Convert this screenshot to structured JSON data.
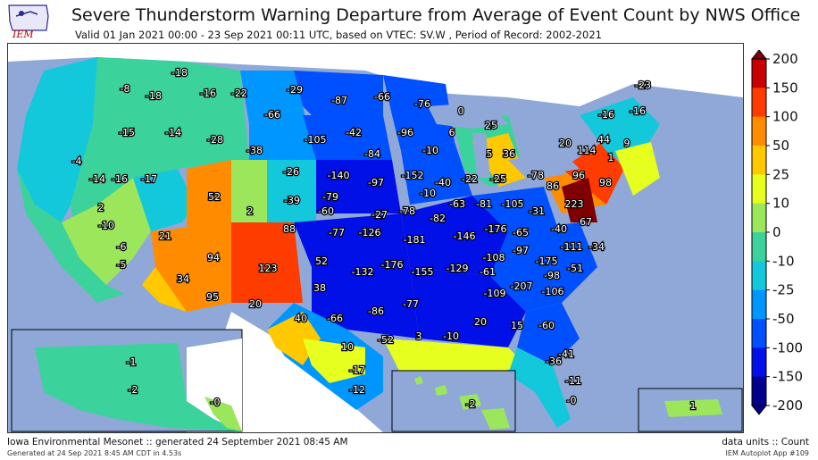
{
  "header": {
    "title": "Severe Thunderstorm Warning Departure from Average of Event Count by NWS Office",
    "subtitle": "Valid 01 Jan 2021 00:00 - 23 Sep 2021 00:11 UTC, based on VTEC: SV.W  , Period of Record: 2002-2021",
    "logo_text": "IEM"
  },
  "footer": {
    "left_line1": "Iowa Environmental Mesonet :: generated 24 September 2021 08:45 AM",
    "left_line2": "Generated at 24 Sep 2021 8:45 AM CDT in 4.53s",
    "right_line1": "data units :: Count",
    "right_line2": "IEM Autoplot App #109"
  },
  "colorbar": {
    "ticks": [
      "200",
      "150",
      "100",
      "50",
      "25",
      "10",
      "0",
      "-10",
      "-25",
      "-50",
      "-100",
      "-150",
      "-200"
    ],
    "colors": [
      "#7f0000",
      "#c80000",
      "#ff3c00",
      "#ff8c00",
      "#ffc800",
      "#e6ff1e",
      "#9be65a",
      "#3cd29b",
      "#14c8dc",
      "#0096ff",
      "#0050ff",
      "#0010e6",
      "#00008c"
    ]
  },
  "chart_data": {
    "type": "choropleth",
    "title": "Severe Thunderstorm Warning Departure from Average of Event Count by NWS Office",
    "units": "Count",
    "scale_bins": [
      -200,
      -150,
      -100,
      -50,
      -25,
      -10,
      0,
      10,
      25,
      50,
      100,
      150,
      200
    ],
    "offices_values": {
      "seattle_area": "-8",
      "nw_wa": "-18",
      "spokane": "-18",
      "missoula": "-16",
      "great_falls": "-22",
      "glasgow": "-29",
      "bismarck": "-87",
      "grand_forks": "-66",
      "duluth": "-76",
      "marquette": "0",
      "caribou": "-23",
      "burlington": "-16",
      "gray_me": "-16",
      "portland_or": "-15",
      "pendleton": "-14",
      "boise": "-28",
      "billings": "-66",
      "rapid_city": "-105",
      "aberdeen": "-42",
      "minneapolis": "-96",
      "green_bay": "6",
      "gaylord": "25",
      "albany": "44",
      "boston": "9",
      "medford": "-4",
      "riverton": "-38",
      "sioux_falls": "-84",
      "la_crosse": "-10",
      "grand_rapids": "5",
      "detroit": "36",
      "buffalo": "20",
      "binghamton": "114",
      "new_york": "1",
      "eureka": "-14",
      "reno": "-16",
      "elko": "-17",
      "salt_lake": "52",
      "cheyenne": "-26",
      "north_platte": "-140",
      "omaha": "-152",
      "des_moines": "-40",
      "chicago": "-22",
      "northern_indiana": "-25",
      "cleveland": "-78",
      "pittsburgh": "86",
      "state_college": "96",
      "philadelphia": "98",
      "grand_junction": "2",
      "denver": "-39",
      "goodland": "-79",
      "hastings": "-97",
      "quad_cities": "-10",
      "sacramento": "2",
      "las_vegas": "21",
      "pueblo": "88",
      "dodge_city": "-60",
      "topeka": "-27",
      "kansas_city": "-78",
      "st_louis": "-82",
      "lincoln_il": "-63",
      "indianapolis": "-81",
      "wilmington_oh": "-105",
      "charleston_wv": "-31",
      "sterling_va": "223",
      "san_francisco": "-10",
      "hanford": "-6",
      "flagstaff": "94",
      "albuquerque": "123",
      "amarillo": "52",
      "wichita": "-77",
      "springfield_mo": "-126",
      "paducah": "-181",
      "louisville": "-146",
      "jackson_ky": "-176",
      "blacksburg": "-65",
      "wakefield": "-40",
      "morehead": "67",
      "los_angeles": "-5",
      "phoenix": "34",
      "tucson": "95",
      "el_paso": "20",
      "lubbock": "38",
      "norman": "-132",
      "tulsa": "-176",
      "little_rock": "-155",
      "memphis": "-129",
      "nashville": "-108",
      "morristown": "-97",
      "greer": "-175",
      "raleigh": "-111",
      "newport": "-34",
      "midland": "40",
      "fort_worth": "-66",
      "shreveport": "-86",
      "jackson_ms": "-77",
      "huntsville": "-61",
      "birmingham": "-109",
      "atlanta": "-207",
      "columbia_sc": "-98",
      "wilmington_nc": "-51",
      "charleston_sc": "-106",
      "san_angelo": "10",
      "austin": "-52",
      "lake_charles": "3",
      "new_orleans": "-10",
      "mobile": "20",
      "tallahassee": "15",
      "jacksonville": "-60",
      "corpus_christi": "-17",
      "brownsville": "-12",
      "melbourne": "-41",
      "tampa": "-36",
      "miami": "-11",
      "key_west": "-0",
      "alaska_north": "-1",
      "alaska_south": "-2",
      "juneau": "-0",
      "hawaii": "-2",
      "puerto_rico": "1"
    }
  }
}
